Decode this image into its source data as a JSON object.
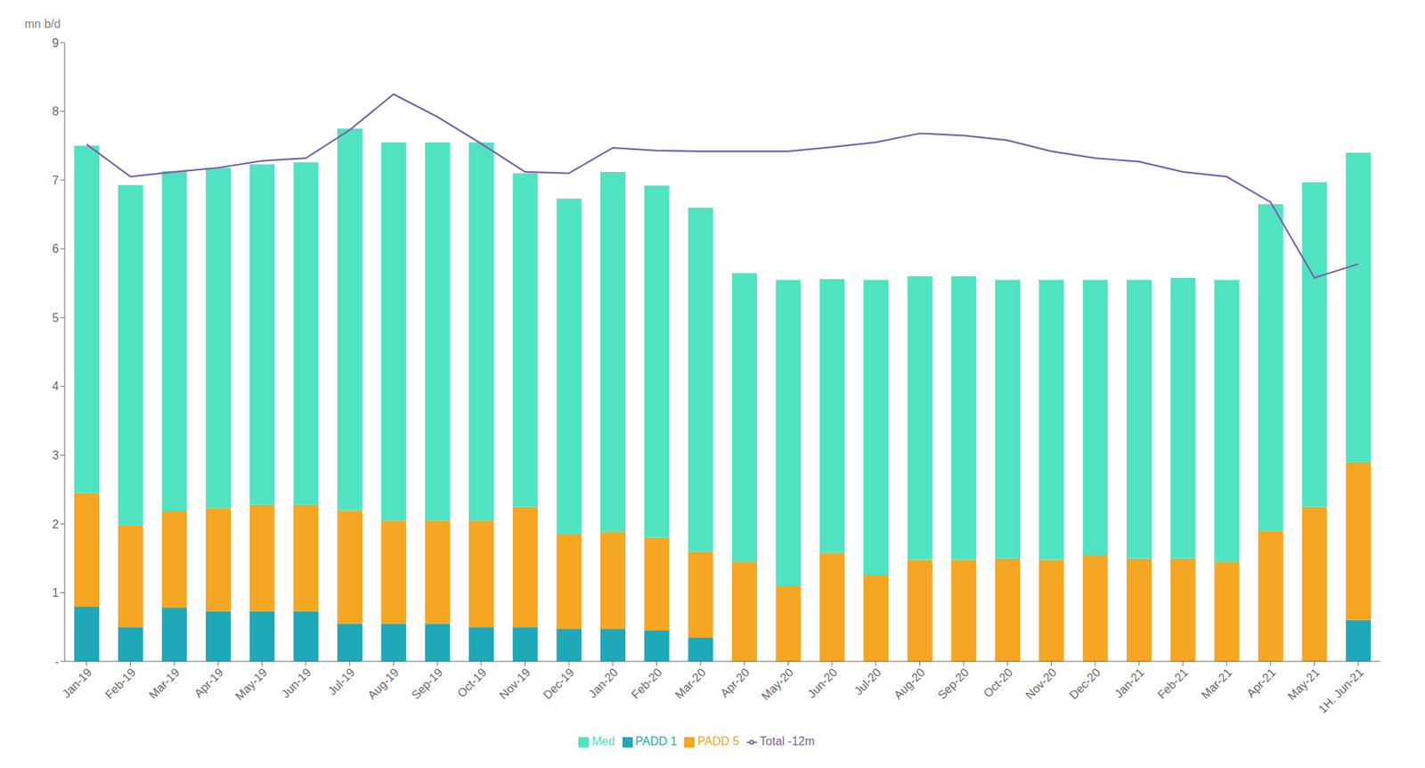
{
  "chart_data": {
    "type": "bar",
    "stacked": true,
    "ylabel": "mn b/d",
    "categories": [
      "Jan-19",
      "Feb-19",
      "Mar-19",
      "Apr-19",
      "May-19",
      "Jun-19",
      "Jul-19",
      "Aug-19",
      "Sep-19",
      "Oct-19",
      "Nov-19",
      "Dec-19",
      "Jan-20",
      "Feb-20",
      "Mar-20",
      "Apr-20",
      "May-20",
      "Jun-20",
      "Jul-20",
      "Aug-20",
      "Sep-20",
      "Oct-20",
      "Nov-20",
      "Dec-20",
      "Jan-21",
      "Feb-21",
      "Mar-21",
      "Apr-21",
      "May-21",
      "1H. Jun-21"
    ],
    "series": [
      {
        "name": "PADD 1",
        "color": "#1ea8b8",
        "values": [
          0.8,
          0.5,
          0.78,
          0.73,
          0.73,
          0.73,
          0.55,
          0.55,
          0.55,
          0.5,
          0.5,
          0.47,
          0.47,
          0.45,
          0.35,
          0.0,
          0.0,
          0.0,
          0.0,
          0.0,
          0.0,
          0.0,
          0.0,
          0.0,
          0.0,
          0.0,
          0.0,
          0.0,
          0.0,
          0.6
        ]
      },
      {
        "name": "PADD 5",
        "color": "#f5a623",
        "values": [
          1.65,
          1.48,
          1.4,
          1.5,
          1.55,
          1.55,
          1.65,
          1.5,
          1.5,
          1.55,
          1.75,
          1.38,
          1.42,
          1.35,
          1.25,
          1.45,
          1.1,
          1.58,
          1.25,
          1.48,
          1.48,
          1.5,
          1.48,
          1.55,
          1.5,
          1.5,
          1.45,
          1.9,
          2.25,
          2.3
        ]
      },
      {
        "name": "Med",
        "color": "#50e3c2",
        "values": [
          5.05,
          4.95,
          4.95,
          4.95,
          4.95,
          4.98,
          5.55,
          5.5,
          5.5,
          5.5,
          4.85,
          4.88,
          5.23,
          5.12,
          5.0,
          4.2,
          4.45,
          3.98,
          4.3,
          4.12,
          4.12,
          4.05,
          4.07,
          4.0,
          4.05,
          4.08,
          4.1,
          4.75,
          4.72,
          4.5
        ]
      },
      {
        "name": "Total -12m",
        "type": "line",
        "color": "#7b5ea7",
        "values": [
          7.52,
          7.05,
          7.12,
          7.18,
          7.28,
          7.32,
          7.73,
          8.25,
          7.92,
          7.53,
          7.12,
          7.1,
          7.47,
          7.43,
          7.42,
          7.42,
          7.42,
          7.48,
          7.55,
          7.68,
          7.65,
          7.58,
          7.42,
          7.32,
          7.27,
          7.12,
          7.05,
          6.68,
          5.58,
          5.78
        ]
      }
    ],
    "ylim": [
      0,
      9
    ],
    "yticks": [
      {
        "value": 0,
        "label": "-"
      },
      1,
      2,
      3,
      4,
      5,
      6,
      7,
      8,
      9
    ],
    "grid": false,
    "legend": "bottom"
  }
}
